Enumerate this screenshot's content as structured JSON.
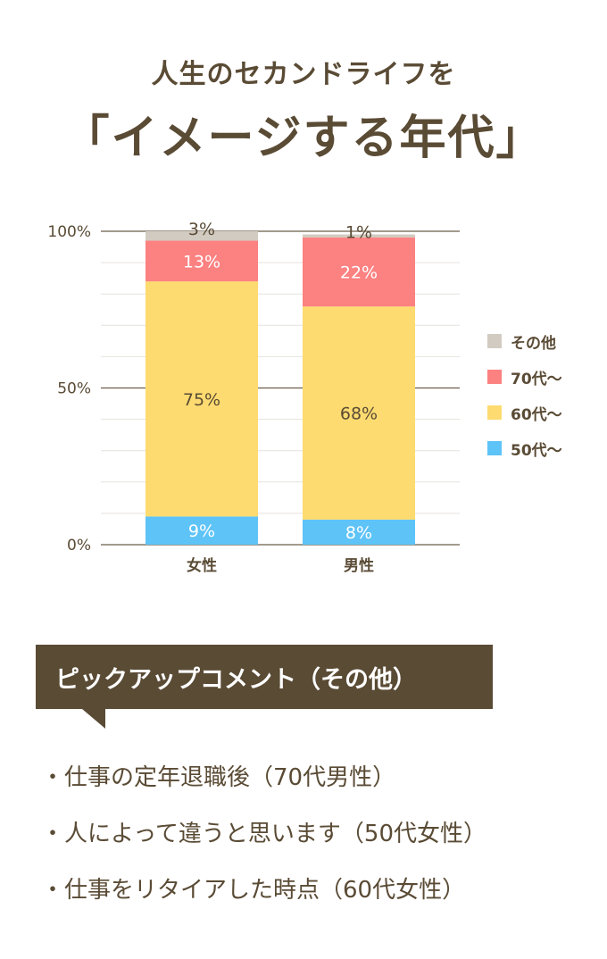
{
  "header": {
    "subtitle": "人生のセカンドライフを",
    "title": "「イメージする年代」"
  },
  "chart_data": {
    "type": "bar",
    "stacked": true,
    "categories": [
      "女性",
      "男性"
    ],
    "series": [
      {
        "name": "50代〜",
        "values": [
          9,
          8
        ],
        "color": "#5ec3f7",
        "label_color": "#ffffff"
      },
      {
        "name": "60代〜",
        "values": [
          75,
          68
        ],
        "color": "#fddb70",
        "label_color": "#5a4b35"
      },
      {
        "name": "70代〜",
        "values": [
          13,
          22
        ],
        "color": "#fc8181",
        "label_color": "#ffffff"
      },
      {
        "name": "その他",
        "values": [
          3,
          1
        ],
        "color": "#d2cbc1",
        "label_color": "#5a4b35"
      }
    ],
    "ylim": [
      0,
      100
    ],
    "yticks": [
      "0%",
      "50%",
      "100%"
    ],
    "grid": true,
    "legend_position": "right"
  },
  "pickup": {
    "banner": "ピックアップコメント（その他）",
    "bullet": "・",
    "comments": [
      "仕事の定年退職後（70代男性）",
      "人によって違うと思います（50代女性）",
      "仕事をリタイアした時点（60代女性）"
    ]
  },
  "colors": {
    "text": "#5a4b35",
    "banner_bg": "#5a4b35"
  }
}
